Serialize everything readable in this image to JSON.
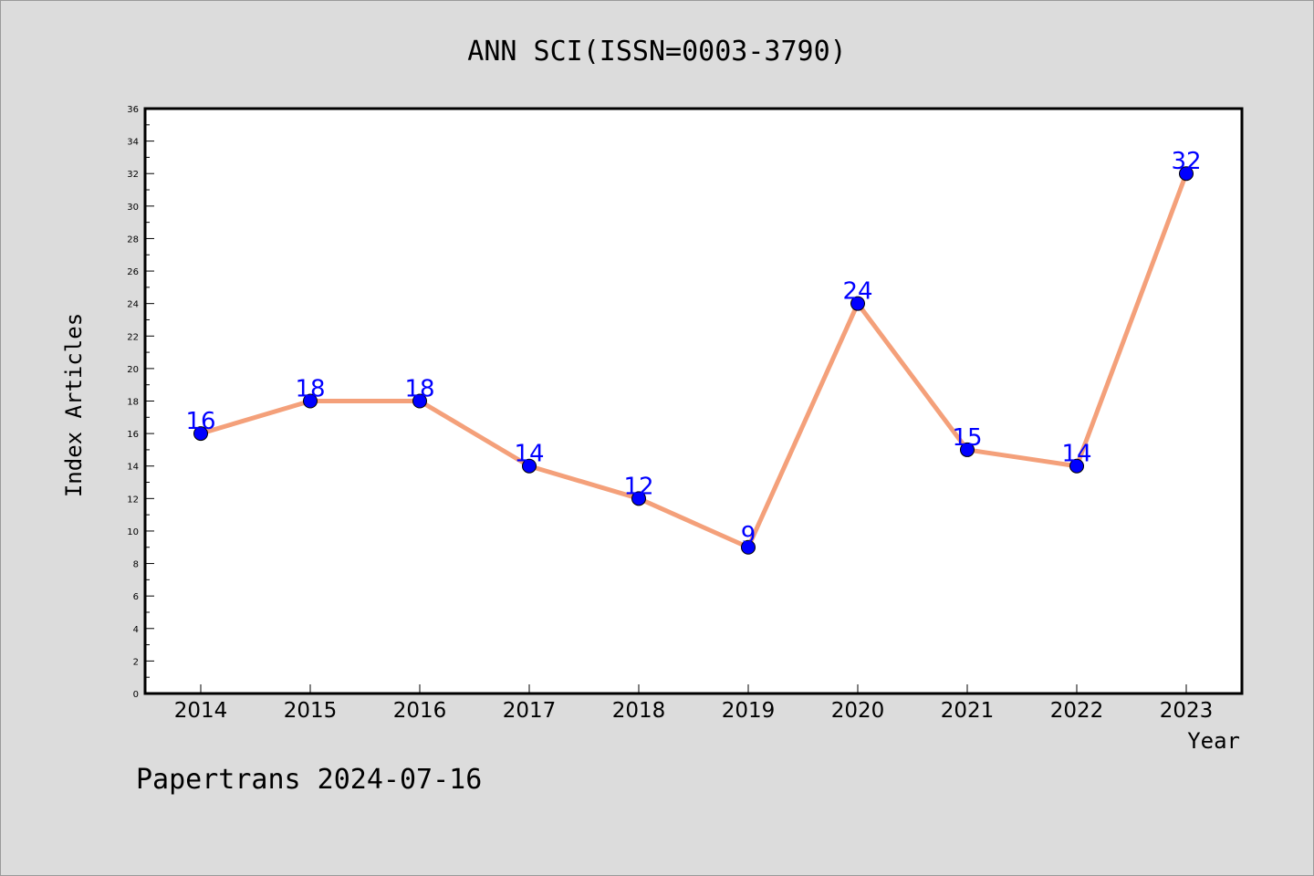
{
  "chart_data": {
    "type": "line",
    "title": "ANN SCI(ISSN=0003-3790)",
    "xlabel": "Year",
    "ylabel": "Index Articles",
    "categories": [
      "2014",
      "2015",
      "2016",
      "2017",
      "2018",
      "2019",
      "2020",
      "2021",
      "2022",
      "2023"
    ],
    "series": [
      {
        "values": [
          16,
          18,
          18,
          14,
          12,
          9,
          24,
          15,
          14,
          32
        ]
      }
    ],
    "ylim": [
      0,
      36
    ],
    "y_major_step": 2,
    "y_minor_step": 1,
    "grid": false,
    "legend": "none",
    "line_color": "#f4a07a",
    "marker_color": "#0000ff",
    "label_color": "#0000ff"
  },
  "footer": {
    "text": "Papertrans 2024-07-16"
  }
}
